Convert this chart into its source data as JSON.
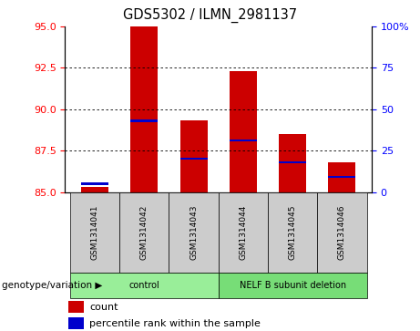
{
  "title": "GDS5302 / ILMN_2981137",
  "samples": [
    "GSM1314041",
    "GSM1314042",
    "GSM1314043",
    "GSM1314044",
    "GSM1314045",
    "GSM1314046"
  ],
  "count_values": [
    85.3,
    95.0,
    89.3,
    92.3,
    88.5,
    86.8
  ],
  "percentile_values": [
    85.5,
    89.3,
    87.0,
    88.1,
    86.8,
    85.9
  ],
  "ylim_left": [
    85,
    95
  ],
  "ylim_right": [
    0,
    100
  ],
  "yticks_left": [
    85,
    87.5,
    90,
    92.5,
    95
  ],
  "yticks_right": [
    0,
    25,
    50,
    75,
    100
  ],
  "bar_color": "#cc0000",
  "marker_color": "#0000cc",
  "bar_width": 0.55,
  "bar_bottom": 85,
  "groups": [
    {
      "label": "control",
      "indices": [
        0,
        1,
        2
      ],
      "color": "#99ee99"
    },
    {
      "label": "NELF B subunit deletion",
      "indices": [
        3,
        4,
        5
      ],
      "color": "#77dd77"
    }
  ],
  "group_label": "genotype/variation",
  "legend_count": "count",
  "legend_percentile": "percentile rank within the sample",
  "sample_area_color": "#cccccc",
  "background_color": "#ffffff",
  "marker_thickness": 0.12
}
